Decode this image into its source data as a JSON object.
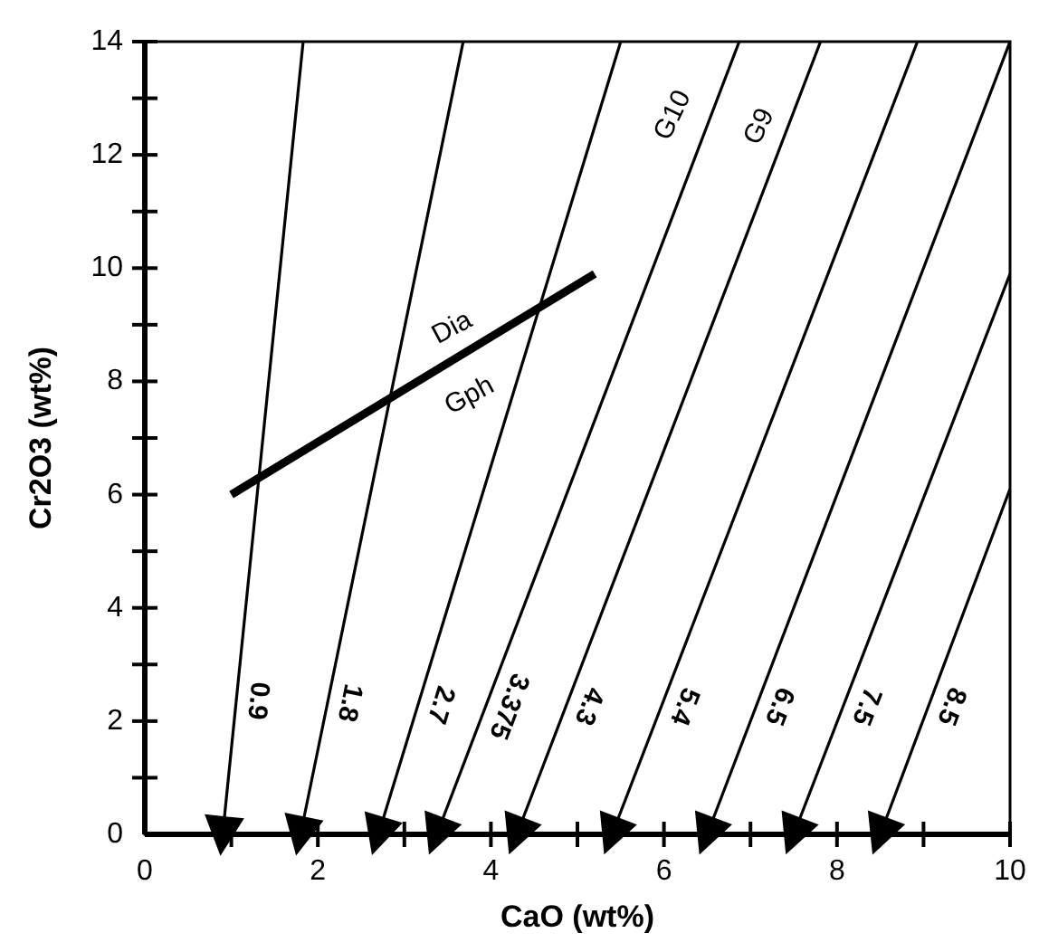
{
  "chart_data": {
    "type": "line",
    "xlabel": "CaO (wt%)",
    "ylabel": "Cr2O3 (wt%)",
    "xlim": [
      0,
      10
    ],
    "ylim": [
      0,
      14
    ],
    "xticks": [
      0,
      {
        "value": 1,
        "label": null
      },
      2,
      {
        "value": 3,
        "label": null
      },
      4,
      {
        "value": 5,
        "label": null
      },
      6,
      {
        "value": 7,
        "label": null
      },
      8,
      {
        "value": 9,
        "label": null
      },
      10
    ],
    "yticks": [
      0,
      {
        "value": 1,
        "label": null
      },
      2,
      {
        "value": 3,
        "label": null
      },
      4,
      {
        "value": 5,
        "label": null
      },
      6,
      {
        "value": 7,
        "label": null
      },
      8,
      {
        "value": 9,
        "label": null
      },
      10,
      {
        "value": 11,
        "label": null
      },
      12,
      {
        "value": 13,
        "label": null
      },
      14
    ],
    "grid": false,
    "line_style": "solid",
    "series": [
      {
        "name": "0.9",
        "color": "#000000",
        "x": [
          0.9,
          1.83
        ],
        "values": [
          0,
          14
        ]
      },
      {
        "name": "1.8",
        "color": "#000000",
        "x": [
          1.8,
          3.68
        ],
        "values": [
          0,
          14
        ]
      },
      {
        "name": "2.7",
        "color": "#000000",
        "x": [
          2.7,
          5.5
        ],
        "values": [
          0,
          14
        ]
      },
      {
        "name": "3.375",
        "color": "#000000",
        "x": [
          3.375,
          6.87
        ],
        "values": [
          0,
          14
        ]
      },
      {
        "name": "4.3",
        "color": "#000000",
        "x": [
          4.3,
          7.81
        ],
        "values": [
          0,
          14
        ]
      },
      {
        "name": "5.4",
        "color": "#000000",
        "x": [
          5.4,
          8.93
        ],
        "values": [
          0,
          14
        ]
      },
      {
        "name": "6.5",
        "color": "#000000",
        "x": [
          6.5,
          10
        ],
        "values": [
          0,
          14
        ]
      },
      {
        "name": "7.5",
        "color": "#000000",
        "x": [
          7.5,
          10
        ],
        "values": [
          0,
          9.9
        ]
      },
      {
        "name": "8.5",
        "color": "#000000",
        "x": [
          8.5,
          10
        ],
        "values": [
          0,
          6.1
        ]
      },
      {
        "color": "#000000",
        "x": [
          1,
          5.2
        ],
        "values": [
          6,
          9.9
        ]
      }
    ],
    "annotations": [
      "Dia",
      "Gph",
      "G10",
      "G9"
    ]
  }
}
